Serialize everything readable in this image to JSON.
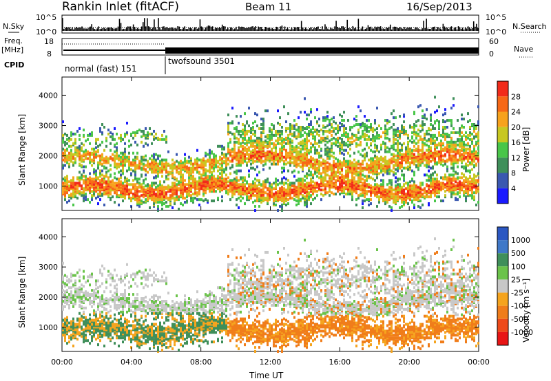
{
  "header": {
    "station": "Rankin Inlet (fitACF)",
    "beam": "Beam 11",
    "date": "16/Sep/2013"
  },
  "strip": {
    "nsky_label": "N.Sky",
    "nsearch_label": "N.Search",
    "freq_label": "Freq.",
    "freq_unit": "[MHz]",
    "nave_label": "Nave",
    "cpid_label": "CPID",
    "left_ticks_top": [
      "10^5",
      "10^0"
    ],
    "right_ticks_top": [
      "10^5",
      "10^0"
    ],
    "left_ticks_freq": [
      "18",
      "8"
    ],
    "right_ticks_nave": [
      "60",
      "0"
    ],
    "cpid_modes": [
      {
        "name": "normal (fast) 151",
        "start_hour": 0,
        "end_hour": 6
      },
      {
        "name": "twofsound 3501",
        "start_hour": 6,
        "end_hour": 24
      }
    ]
  },
  "axes": {
    "xlabel": "Time UT",
    "x_ticks": [
      "00:00",
      "04:00",
      "08:00",
      "12:00",
      "16:00",
      "20:00",
      "00:00"
    ],
    "ylabel": "Slant Range [km]",
    "y_ticks": [
      "1000",
      "2000",
      "3000",
      "4000"
    ]
  },
  "chart_data": [
    {
      "type": "heatmap",
      "name": "power",
      "colorbar_label": "Power [dB]",
      "colorbar_ticks": [
        "4",
        "8",
        "12",
        "16",
        "20",
        "24",
        "28"
      ],
      "colorbar_colors": [
        "#1a1aff",
        "#3a58b0",
        "#3f8f5a",
        "#49c649",
        "#c8c821",
        "#f7a21c",
        "#f76816",
        "#f22b1a"
      ],
      "xlim": [
        0,
        24
      ],
      "ylim": [
        200,
        4600
      ]
    },
    {
      "type": "heatmap",
      "name": "velocity",
      "colorbar_label": "Velocity [m s⁻¹]",
      "colorbar_ticks": [
        "1000",
        "500",
        "100",
        "25",
        "-25",
        "-100",
        "-500",
        "-1000"
      ],
      "colorbar_colors": [
        "#2b57c2",
        "#3f78c8",
        "#3f8f5a",
        "#6bc34a",
        "#c8c8c8",
        "#f5a41e",
        "#f07d1a",
        "#ee4a1a",
        "#e81515"
      ],
      "xlim": [
        0,
        24
      ],
      "ylim": [
        200,
        4600
      ]
    }
  ]
}
